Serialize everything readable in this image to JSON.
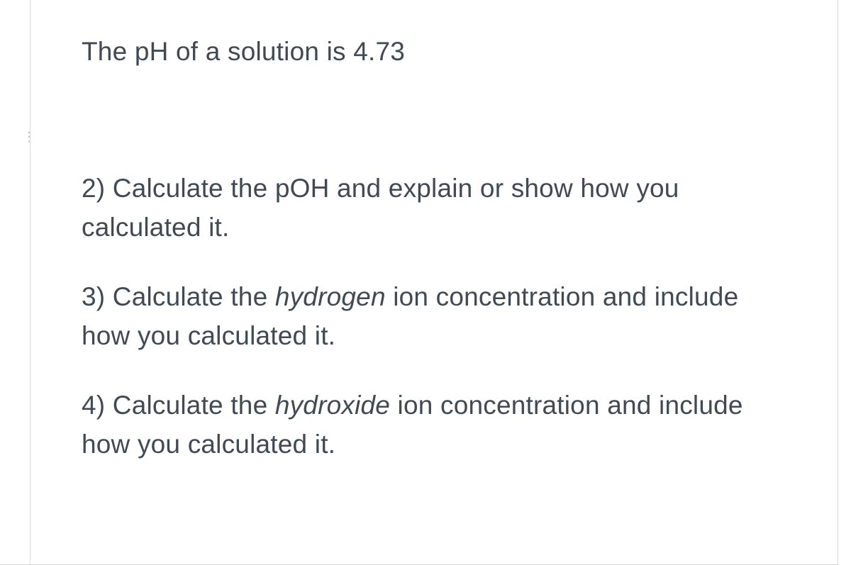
{
  "text_color": "#404a54",
  "border_color": "#d9d9d9",
  "background_color": "#ffffff",
  "intro": "The pH of a solution is 4.73",
  "questions": [
    {
      "prefix": "2) Calculate the pOH and explain or show how you calculated it."
    },
    {
      "before": "3) Calculate the ",
      "italic": "hydrogen",
      "after": " ion concentration and include how you calculated it."
    },
    {
      "before": "4) Calculate the ",
      "italic": "hydroxide",
      "after": " ion concentration and include how you calculated it."
    }
  ]
}
